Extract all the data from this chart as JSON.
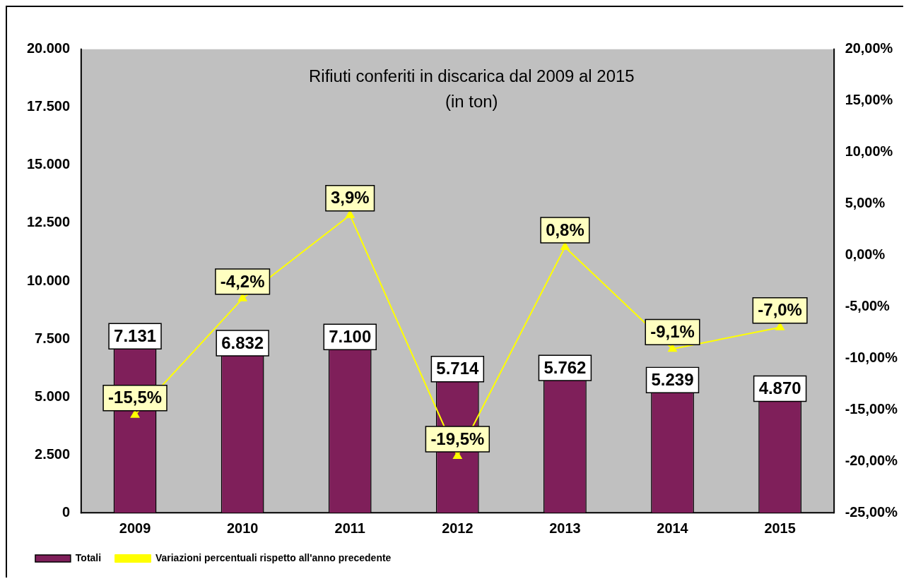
{
  "chart_data": {
    "type": "bar",
    "title": "Rifiuti conferiti in discarica dal 2009 al 2015",
    "subtitle": "(in ton)",
    "categories": [
      "2009",
      "2010",
      "2011",
      "2012",
      "2013",
      "2014",
      "2015"
    ],
    "series": [
      {
        "name": "Totali",
        "color": "#7f1f5a",
        "values": [
          7131,
          6832,
          7100,
          5714,
          5762,
          5239,
          4870
        ],
        "value_labels": [
          "7.131",
          "6.832",
          "7.100",
          "5.714",
          "5.762",
          "5.239",
          "4.870"
        ]
      },
      {
        "name": "Variazioni percentuali rispetto all'anno precedente",
        "type": "line",
        "axis": "y2",
        "color": "#ffff00",
        "marker": "triangle",
        "values": [
          -15.5,
          -4.2,
          3.9,
          -19.5,
          0.8,
          -9.1,
          -7.0
        ],
        "value_labels": [
          "-15,5%",
          "-4,2%",
          "3,9%",
          "-19,5%",
          "0,8%",
          "-9,1%",
          "-7,0%"
        ]
      }
    ],
    "ylim": [
      0,
      20000
    ],
    "yticks": [
      0,
      {
        "value": 2500,
        "label": "2.500"
      },
      {
        "value": 5000,
        "label": "5.000"
      },
      {
        "value": 7500,
        "label": "7.500"
      },
      {
        "value": 10000,
        "label": "10.000"
      },
      {
        "value": 12500,
        "label": "12.500"
      },
      {
        "value": 15000,
        "label": "15.000"
      },
      {
        "value": 17500,
        "label": "17.500"
      },
      {
        "value": 20000,
        "label": "20.000"
      }
    ],
    "y2lim": [
      -25,
      20
    ],
    "y2ticks": [
      {
        "value": -25,
        "label": "-25,00%"
      },
      {
        "value": -20,
        "label": "-20,00%"
      },
      {
        "value": -15,
        "label": "-15,00%"
      },
      {
        "value": -10,
        "label": "-10,00%"
      },
      {
        "value": -5,
        "label": "-5,00%"
      },
      {
        "value": 0,
        "label": "0,00%"
      },
      {
        "value": 5,
        "label": "5,00%"
      },
      {
        "value": 10,
        "label": "10,00%"
      },
      {
        "value": 15,
        "label": "15,00%"
      },
      {
        "value": 20,
        "label": "20,00%"
      }
    ],
    "grid": false,
    "legend": "bottom"
  }
}
